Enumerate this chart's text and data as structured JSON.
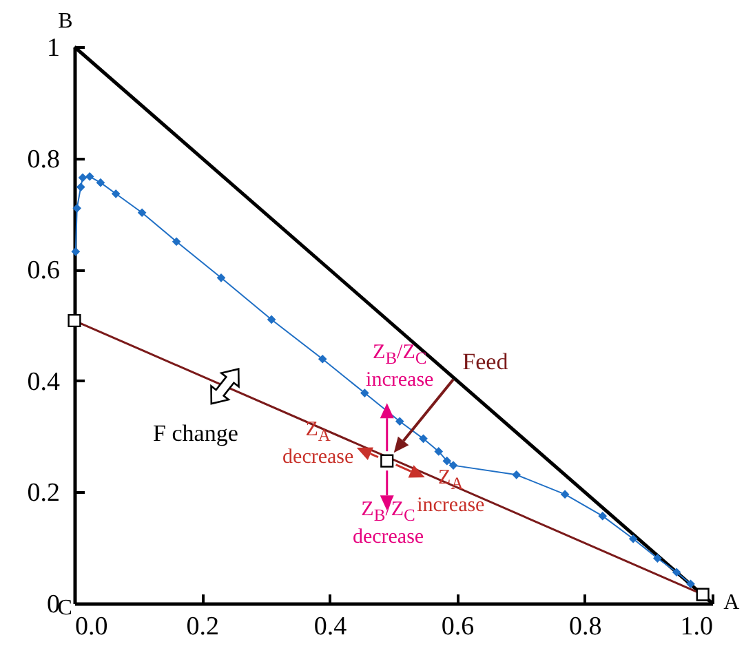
{
  "chart_data": {
    "type": "line",
    "xlim": [
      0,
      1
    ],
    "ylim": [
      0,
      1
    ],
    "xticks": [
      {
        "value": 0,
        "label": "0.0"
      },
      0.2,
      0.4,
      0.6,
      0.8,
      {
        "value": 1,
        "label": "1.0"
      }
    ],
    "yticks": [
      0,
      0.2,
      0.4,
      0.6,
      0.8,
      1
    ],
    "grid": false,
    "series": [
      {
        "color": "#000000",
        "marker": "none",
        "x": [
          0,
          1
        ],
        "values": [
          1,
          0
        ]
      },
      {
        "color": "#7b1a1a",
        "marker": "none",
        "x": [
          0,
          0.985
        ],
        "values": [
          0.508,
          0.016
        ]
      },
      {
        "color": "#1f6fc5",
        "marker": "diamond",
        "x": [
          0.002,
          0.004,
          0.01,
          0.013,
          0.024,
          0.041,
          0.065,
          0.106,
          0.16,
          0.23,
          0.309,
          0.389,
          0.455,
          0.51,
          0.547,
          0.571,
          0.584,
          0.594,
          0.693,
          0.769,
          0.828,
          0.876,
          0.914,
          0.944,
          0.966
        ],
        "values": [
          0.632,
          0.71,
          0.748,
          0.765,
          0.767,
          0.756,
          0.736,
          0.702,
          0.65,
          0.585,
          0.51,
          0.439,
          0.378,
          0.327,
          0.296,
          0.273,
          0.256,
          0.248,
          0.231,
          0.196,
          0.157,
          0.116,
          0.081,
          0.056,
          0.035
        ]
      },
      {
        "type": "scatter",
        "color": "#ffffff",
        "marker": "square",
        "x": [
          0,
          0.49,
          0.985
        ],
        "values": [
          0.508,
          0.256,
          0.016
        ]
      }
    ],
    "annotations": [
      "B",
      "C",
      "A",
      "Feed",
      "F change",
      "Z$_{A}$\ndecrease",
      "Z$_{A}$\nincrease",
      "Z$_{B}$/Z$_{C}$\nincrease",
      "Z$_{B}$/Z$_{C}$\ndecrease"
    ]
  }
}
